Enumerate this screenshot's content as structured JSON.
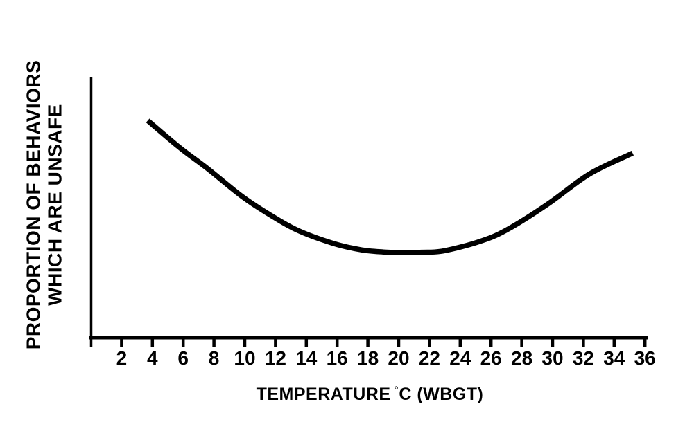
{
  "figure": {
    "background": "#ffffff",
    "ink_color": "#000000"
  },
  "chart_data": {
    "type": "line",
    "title": "",
    "xlabel": "TEMPERATURE °C (WBGT)",
    "xlabel_parts": {
      "prefix": "TEMPERATURE",
      "degree": "°",
      "suffix": "C (WBGT)"
    },
    "ylabel": "PROPORTION OF BEHAVIORS WHICH ARE UNSAFE",
    "ylabel_lines": [
      "PROPORTION OF BEHAVIORS",
      "WHICH ARE UNSAFE"
    ],
    "x_ticks": [
      2,
      4,
      6,
      8,
      10,
      12,
      14,
      16,
      18,
      20,
      22,
      24,
      26,
      28,
      30,
      32,
      34,
      36
    ],
    "y_ticks": [],
    "xlim": [
      0,
      36.2
    ],
    "ylim": [
      0,
      1
    ],
    "grid": false,
    "legend_position": "none",
    "series": [
      {
        "name": "proportion-of-unsafe-behaviors",
        "x": [
          3.7,
          5.8,
          7.6,
          9.8,
          11.6,
          13.4,
          15.7,
          17.5,
          19.0,
          20.2,
          21.5,
          22.9,
          25.2,
          27.0,
          29.7,
          32.4,
          35.2
        ],
        "y": [
          0.835,
          0.73,
          0.65,
          0.545,
          0.475,
          0.415,
          0.365,
          0.34,
          0.331,
          0.329,
          0.33,
          0.335,
          0.37,
          0.415,
          0.515,
          0.63,
          0.71
        ],
        "minimum_at_x": 20,
        "color": "#000000",
        "stroke_width_px": 7.5
      }
    ]
  }
}
